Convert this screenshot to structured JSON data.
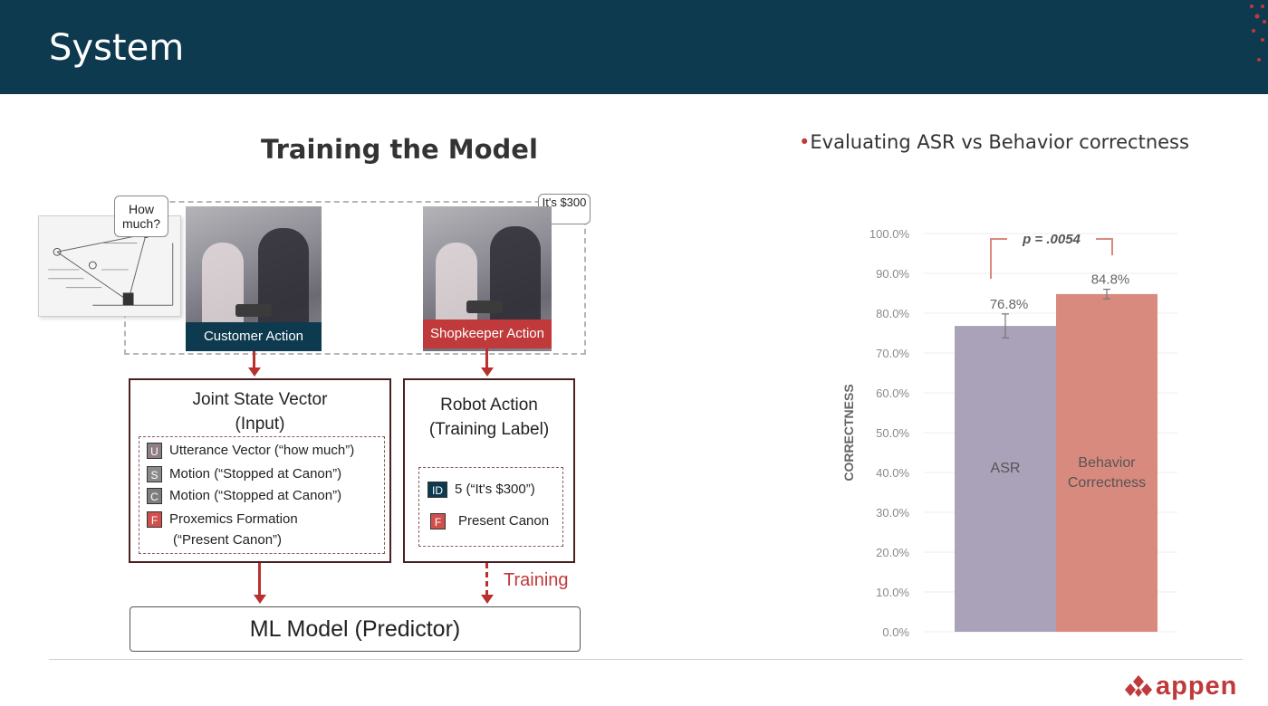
{
  "header": {
    "title": "System"
  },
  "diagram": {
    "title": "Training the Model",
    "bubble_customer": "How much?",
    "bubble_shopkeeper": "It's $300",
    "customer_action": "Customer Action",
    "shopkeeper_action": "Shopkeeper Action",
    "joint_state": {
      "title_line1": "Joint State Vector",
      "title_line2": "(Input)",
      "rows": [
        {
          "tag": "U",
          "text": "Utterance Vector (“how much”)"
        },
        {
          "tag": "S",
          "text": "Motion (“Stopped at Canon”)"
        },
        {
          "tag": "C",
          "text": "Motion (“Stopped at Canon”)"
        },
        {
          "tag": "F",
          "text": "Proxemics Formation",
          "text2": "(“Present Canon”)"
        }
      ]
    },
    "robot_action": {
      "title_line1": "Robot Action",
      "title_line2": "(Training Label)",
      "rows": [
        {
          "tag": "ID",
          "text": "5 (“It's $300”)"
        },
        {
          "tag": "F",
          "text": "Present Canon"
        }
      ]
    },
    "training_label": "Training",
    "ml_model": "ML Model (Predictor)"
  },
  "evaluation": {
    "bullet": "•",
    "title": "Evaluating ASR vs Behavior correctness"
  },
  "chart_data": {
    "type": "bar",
    "categories": [
      "ASR",
      "Behavior Correctness"
    ],
    "values": [
      76.8,
      84.8
    ],
    "value_labels": [
      "76.8%",
      "84.8%"
    ],
    "error": [
      3.0,
      1.2
    ],
    "colors": [
      "#a9a2b8",
      "#d98a7e"
    ],
    "ylabel": "CORRECTNESS",
    "ylim": [
      0,
      100
    ],
    "ytick_step": 10,
    "grid": true,
    "annotation": "p = .0054",
    "bar_label_lines": [
      [
        "ASR"
      ],
      [
        "Behavior",
        "Correctness"
      ]
    ]
  },
  "logo": {
    "text": "appen",
    "mark_color": "#c0393b"
  }
}
